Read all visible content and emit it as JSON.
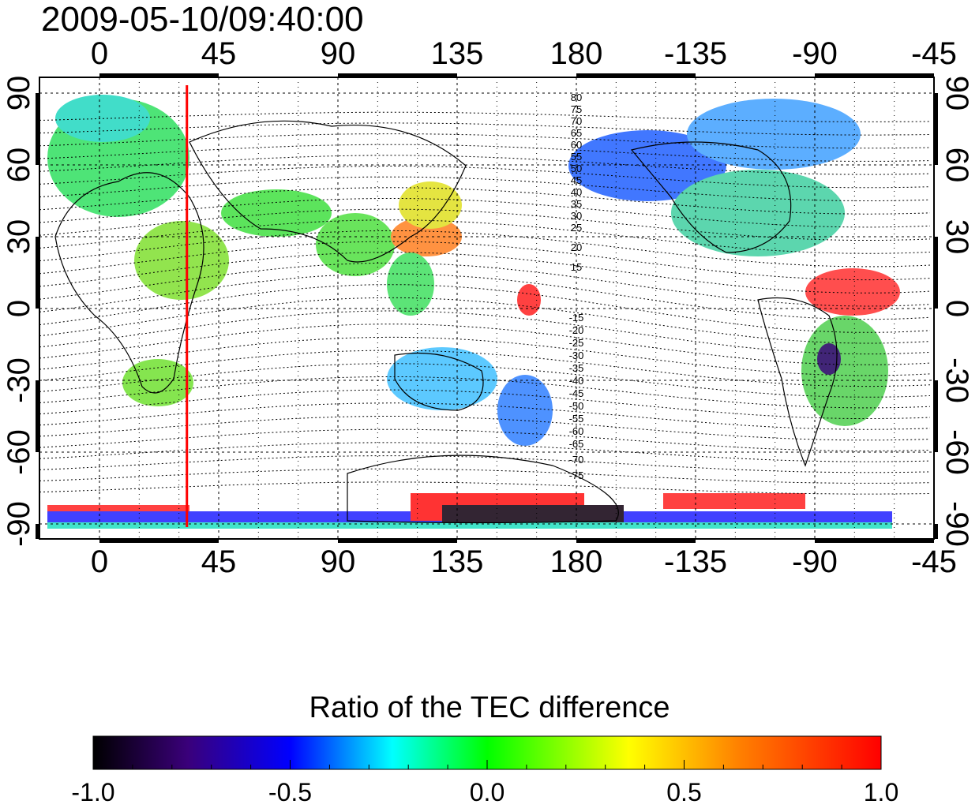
{
  "timestamp": "2009-05-10/09:40:00",
  "top_axis_labels": [
    "0",
    "45",
    "90",
    "135",
    "180",
    "-135",
    "-90",
    "-45"
  ],
  "bottom_axis_labels": [
    "0",
    "45",
    "90",
    "135",
    "180",
    "-135",
    "-90",
    "-45"
  ],
  "left_axis_labels": [
    "90",
    "60",
    "30",
    "0",
    "-30",
    "-60",
    "-90"
  ],
  "right_axis_labels": [
    "90",
    "60",
    "30",
    "0",
    "-30",
    "-60",
    "-90"
  ],
  "contour_labels_north": [
    "80",
    "75",
    "70",
    "65",
    "60",
    "55",
    "50",
    "45",
    "40",
    "35",
    "30",
    "25",
    "20",
    "15"
  ],
  "contour_labels_south": [
    "-15",
    "-20",
    "-25",
    "-30",
    "-35",
    "-40",
    "-45",
    "-50",
    "-55",
    "-60",
    "-65",
    "-70",
    "-75"
  ],
  "marker_longitude": 33,
  "marker_color": "#ff0000",
  "colorbar": {
    "title": "Ratio of the TEC difference",
    "tick_labels": [
      "-1.0",
      "-0.5",
      "0.0",
      "0.5",
      "1.0"
    ],
    "range": [
      -1.0,
      1.0
    ],
    "colors": [
      "#000000",
      "#3a007a",
      "#0000ff",
      "#00ffff",
      "#00ff00",
      "#ffff00",
      "#ff8000",
      "#ff0000"
    ]
  }
}
